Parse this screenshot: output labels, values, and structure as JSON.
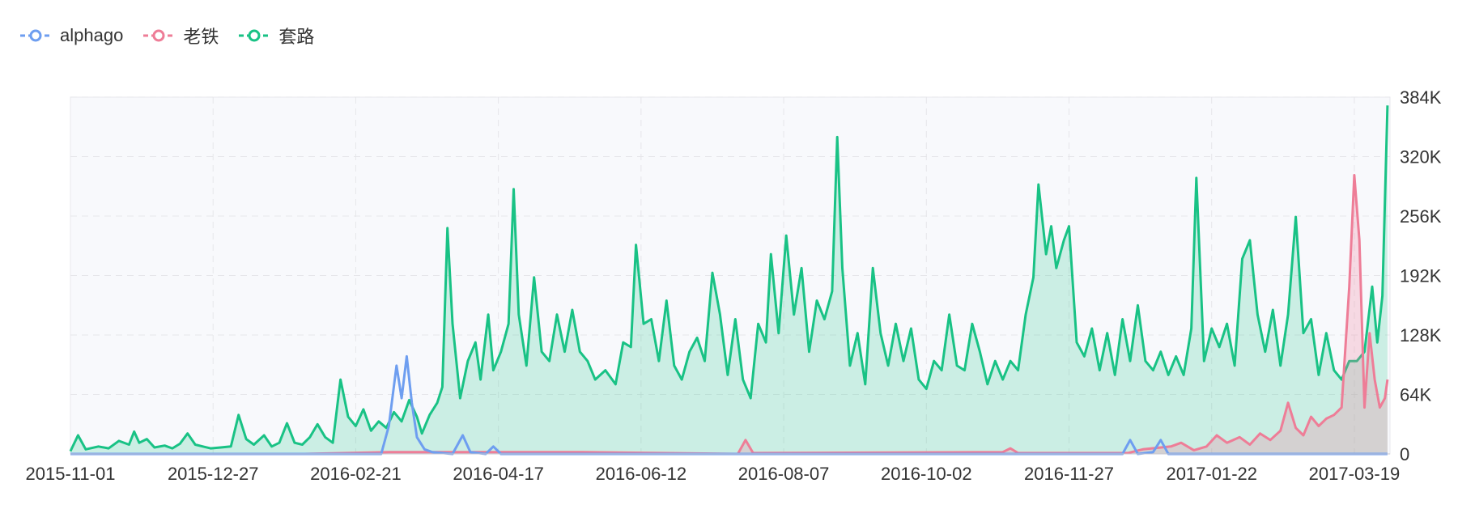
{
  "legend": [
    {
      "name": "alphago",
      "color": "#6e9ef0"
    },
    {
      "name": "老铁",
      "color": "#ee7d97"
    },
    {
      "name": "套路",
      "color": "#19c285"
    }
  ],
  "chart_data": {
    "type": "line",
    "x_tick_labels": [
      "2015-11-01",
      "2015-12-27",
      "2016-02-21",
      "2016-04-17",
      "2016-06-12",
      "2016-08-07",
      "2016-10-02",
      "2016-11-27",
      "2017-01-22",
      "2017-03-19"
    ],
    "y_tick_labels": [
      "0",
      "64K",
      "128K",
      "192K",
      "256K",
      "320K",
      "384K"
    ],
    "ylim": [
      0,
      384000
    ],
    "xlim": [
      "2015-11-01",
      "2017-04-02"
    ],
    "y_axis_position": "right",
    "grid": true,
    "legend_position": "top-left",
    "series": [
      {
        "name": "套路",
        "color": "#19c285",
        "area": true,
        "points": [
          [
            "2015-11-01",
            3000
          ],
          [
            "2015-11-04",
            20000
          ],
          [
            "2015-11-07",
            5000
          ],
          [
            "2015-11-12",
            8000
          ],
          [
            "2015-11-16",
            6000
          ],
          [
            "2015-11-20",
            14000
          ],
          [
            "2015-11-24",
            10000
          ],
          [
            "2015-11-26",
            24000
          ],
          [
            "2015-11-28",
            12000
          ],
          [
            "2015-12-01",
            16000
          ],
          [
            "2015-12-04",
            7000
          ],
          [
            "2015-12-08",
            9000
          ],
          [
            "2015-12-11",
            6000
          ],
          [
            "2015-12-14",
            11000
          ],
          [
            "2015-12-17",
            22000
          ],
          [
            "2015-12-20",
            10000
          ],
          [
            "2015-12-23",
            8000
          ],
          [
            "2015-12-26",
            6000
          ],
          [
            "2015-12-30",
            7000
          ],
          [
            "2016-01-03",
            8000
          ],
          [
            "2016-01-06",
            42000
          ],
          [
            "2016-01-09",
            16000
          ],
          [
            "2016-01-12",
            10000
          ],
          [
            "2016-01-16",
            20000
          ],
          [
            "2016-01-19",
            8000
          ],
          [
            "2016-01-22",
            12000
          ],
          [
            "2016-01-25",
            33000
          ],
          [
            "2016-01-28",
            12000
          ],
          [
            "2016-01-31",
            10000
          ],
          [
            "2016-02-03",
            18000
          ],
          [
            "2016-02-06",
            32000
          ],
          [
            "2016-02-09",
            18000
          ],
          [
            "2016-02-12",
            12000
          ],
          [
            "2016-02-15",
            80000
          ],
          [
            "2016-02-18",
            40000
          ],
          [
            "2016-02-21",
            30000
          ],
          [
            "2016-02-24",
            48000
          ],
          [
            "2016-02-27",
            25000
          ],
          [
            "2016-03-01",
            35000
          ],
          [
            "2016-03-04",
            28000
          ],
          [
            "2016-03-07",
            45000
          ],
          [
            "2016-03-10",
            35000
          ],
          [
            "2016-03-13",
            58000
          ],
          [
            "2016-03-16",
            40000
          ],
          [
            "2016-03-18",
            22000
          ],
          [
            "2016-03-21",
            42000
          ],
          [
            "2016-03-24",
            55000
          ],
          [
            "2016-03-26",
            72000
          ],
          [
            "2016-03-28",
            243000
          ],
          [
            "2016-03-30",
            140000
          ],
          [
            "2016-04-02",
            60000
          ],
          [
            "2016-04-05",
            100000
          ],
          [
            "2016-04-08",
            120000
          ],
          [
            "2016-04-10",
            80000
          ],
          [
            "2016-04-13",
            150000
          ],
          [
            "2016-04-15",
            90000
          ],
          [
            "2016-04-18",
            110000
          ],
          [
            "2016-04-21",
            140000
          ],
          [
            "2016-04-23",
            285000
          ],
          [
            "2016-04-25",
            150000
          ],
          [
            "2016-04-28",
            95000
          ],
          [
            "2016-05-01",
            190000
          ],
          [
            "2016-05-04",
            110000
          ],
          [
            "2016-05-07",
            100000
          ],
          [
            "2016-05-10",
            150000
          ],
          [
            "2016-05-13",
            110000
          ],
          [
            "2016-05-16",
            155000
          ],
          [
            "2016-05-19",
            110000
          ],
          [
            "2016-05-22",
            100000
          ],
          [
            "2016-05-25",
            80000
          ],
          [
            "2016-05-29",
            90000
          ],
          [
            "2016-06-02",
            75000
          ],
          [
            "2016-06-05",
            120000
          ],
          [
            "2016-06-08",
            115000
          ],
          [
            "2016-06-10",
            225000
          ],
          [
            "2016-06-13",
            140000
          ],
          [
            "2016-06-16",
            145000
          ],
          [
            "2016-06-19",
            100000
          ],
          [
            "2016-06-22",
            165000
          ],
          [
            "2016-06-25",
            95000
          ],
          [
            "2016-06-28",
            80000
          ],
          [
            "2016-07-01",
            110000
          ],
          [
            "2016-07-04",
            125000
          ],
          [
            "2016-07-07",
            100000
          ],
          [
            "2016-07-10",
            195000
          ],
          [
            "2016-07-13",
            150000
          ],
          [
            "2016-07-16",
            85000
          ],
          [
            "2016-07-19",
            145000
          ],
          [
            "2016-07-22",
            80000
          ],
          [
            "2016-07-25",
            60000
          ],
          [
            "2016-07-28",
            140000
          ],
          [
            "2016-07-31",
            120000
          ],
          [
            "2016-08-02",
            215000
          ],
          [
            "2016-08-05",
            130000
          ],
          [
            "2016-08-08",
            235000
          ],
          [
            "2016-08-11",
            150000
          ],
          [
            "2016-08-14",
            200000
          ],
          [
            "2016-08-17",
            110000
          ],
          [
            "2016-08-20",
            165000
          ],
          [
            "2016-08-23",
            145000
          ],
          [
            "2016-08-26",
            175000
          ],
          [
            "2016-08-28",
            341000
          ],
          [
            "2016-08-30",
            200000
          ],
          [
            "2016-09-02",
            95000
          ],
          [
            "2016-09-05",
            130000
          ],
          [
            "2016-09-08",
            75000
          ],
          [
            "2016-09-11",
            200000
          ],
          [
            "2016-09-14",
            130000
          ],
          [
            "2016-09-17",
            95000
          ],
          [
            "2016-09-20",
            140000
          ],
          [
            "2016-09-23",
            100000
          ],
          [
            "2016-09-26",
            135000
          ],
          [
            "2016-09-29",
            80000
          ],
          [
            "2016-10-02",
            70000
          ],
          [
            "2016-10-05",
            100000
          ],
          [
            "2016-10-08",
            90000
          ],
          [
            "2016-10-11",
            150000
          ],
          [
            "2016-10-14",
            95000
          ],
          [
            "2016-10-17",
            90000
          ],
          [
            "2016-10-20",
            140000
          ],
          [
            "2016-10-23",
            110000
          ],
          [
            "2016-10-26",
            75000
          ],
          [
            "2016-10-29",
            100000
          ],
          [
            "2016-11-01",
            80000
          ],
          [
            "2016-11-04",
            100000
          ],
          [
            "2016-11-07",
            90000
          ],
          [
            "2016-11-10",
            150000
          ],
          [
            "2016-11-13",
            190000
          ],
          [
            "2016-11-15",
            290000
          ],
          [
            "2016-11-18",
            215000
          ],
          [
            "2016-11-20",
            245000
          ],
          [
            "2016-11-22",
            200000
          ],
          [
            "2016-11-25",
            230000
          ],
          [
            "2016-11-27",
            245000
          ],
          [
            "2016-11-30",
            120000
          ],
          [
            "2016-12-03",
            105000
          ],
          [
            "2016-12-06",
            135000
          ],
          [
            "2016-12-09",
            90000
          ],
          [
            "2016-12-12",
            130000
          ],
          [
            "2016-12-15",
            85000
          ],
          [
            "2016-12-18",
            145000
          ],
          [
            "2016-12-21",
            100000
          ],
          [
            "2016-12-24",
            160000
          ],
          [
            "2016-12-27",
            100000
          ],
          [
            "2016-12-30",
            90000
          ],
          [
            "2017-01-02",
            110000
          ],
          [
            "2017-01-05",
            85000
          ],
          [
            "2017-01-08",
            105000
          ],
          [
            "2017-01-11",
            85000
          ],
          [
            "2017-01-14",
            135000
          ],
          [
            "2017-01-16",
            297000
          ],
          [
            "2017-01-19",
            100000
          ],
          [
            "2017-01-22",
            135000
          ],
          [
            "2017-01-25",
            115000
          ],
          [
            "2017-01-28",
            140000
          ],
          [
            "2017-01-31",
            95000
          ],
          [
            "2017-02-03",
            210000
          ],
          [
            "2017-02-06",
            230000
          ],
          [
            "2017-02-09",
            150000
          ],
          [
            "2017-02-12",
            110000
          ],
          [
            "2017-02-15",
            155000
          ],
          [
            "2017-02-18",
            95000
          ],
          [
            "2017-02-21",
            150000
          ],
          [
            "2017-02-24",
            255000
          ],
          [
            "2017-02-27",
            130000
          ],
          [
            "2017-03-02",
            145000
          ],
          [
            "2017-03-05",
            85000
          ],
          [
            "2017-03-08",
            130000
          ],
          [
            "2017-03-11",
            90000
          ],
          [
            "2017-03-14",
            80000
          ],
          [
            "2017-03-17",
            100000
          ],
          [
            "2017-03-20",
            100000
          ],
          [
            "2017-03-23",
            110000
          ],
          [
            "2017-03-26",
            180000
          ],
          [
            "2017-03-28",
            120000
          ],
          [
            "2017-03-30",
            170000
          ],
          [
            "2017-04-01",
            375000
          ]
        ]
      },
      {
        "name": "老铁",
        "color": "#ee7d97",
        "area": true,
        "points": [
          [
            "2015-11-01",
            0
          ],
          [
            "2016-02-01",
            0
          ],
          [
            "2016-03-05",
            2000
          ],
          [
            "2016-04-10",
            2000
          ],
          [
            "2016-05-20",
            2000
          ],
          [
            "2016-07-20",
            0
          ],
          [
            "2016-07-23",
            15000
          ],
          [
            "2016-07-26",
            1000
          ],
          [
            "2016-11-01",
            2000
          ],
          [
            "2016-11-04",
            6000
          ],
          [
            "2016-11-07",
            1000
          ],
          [
            "2016-12-20",
            1000
          ],
          [
            "2016-12-26",
            5000
          ],
          [
            "2017-01-06",
            8000
          ],
          [
            "2017-01-10",
            12000
          ],
          [
            "2017-01-15",
            4000
          ],
          [
            "2017-01-20",
            8000
          ],
          [
            "2017-01-24",
            20000
          ],
          [
            "2017-01-28",
            12000
          ],
          [
            "2017-02-02",
            18000
          ],
          [
            "2017-02-06",
            10000
          ],
          [
            "2017-02-10",
            22000
          ],
          [
            "2017-02-14",
            15000
          ],
          [
            "2017-02-18",
            25000
          ],
          [
            "2017-02-21",
            55000
          ],
          [
            "2017-02-24",
            28000
          ],
          [
            "2017-02-27",
            20000
          ],
          [
            "2017-03-02",
            40000
          ],
          [
            "2017-03-05",
            30000
          ],
          [
            "2017-03-08",
            38000
          ],
          [
            "2017-03-11",
            42000
          ],
          [
            "2017-03-14",
            50000
          ],
          [
            "2017-03-17",
            180000
          ],
          [
            "2017-03-19",
            300000
          ],
          [
            "2017-03-21",
            230000
          ],
          [
            "2017-03-23",
            50000
          ],
          [
            "2017-03-25",
            130000
          ],
          [
            "2017-03-27",
            80000
          ],
          [
            "2017-03-29",
            50000
          ],
          [
            "2017-03-31",
            60000
          ],
          [
            "2017-04-01",
            80000
          ]
        ]
      },
      {
        "name": "alphago",
        "color": "#6e9ef0",
        "area": false,
        "points": [
          [
            "2015-11-01",
            0
          ],
          [
            "2016-03-02",
            0
          ],
          [
            "2016-03-05",
            30000
          ],
          [
            "2016-03-08",
            95000
          ],
          [
            "2016-03-10",
            60000
          ],
          [
            "2016-03-12",
            105000
          ],
          [
            "2016-03-14",
            55000
          ],
          [
            "2016-03-16",
            18000
          ],
          [
            "2016-03-19",
            5000
          ],
          [
            "2016-03-22",
            2000
          ],
          [
            "2016-03-30",
            0
          ],
          [
            "2016-04-03",
            20000
          ],
          [
            "2016-04-06",
            2000
          ],
          [
            "2016-04-12",
            0
          ],
          [
            "2016-04-15",
            8000
          ],
          [
            "2016-04-18",
            0
          ],
          [
            "2016-12-18",
            0
          ],
          [
            "2016-12-21",
            15000
          ],
          [
            "2016-12-24",
            0
          ],
          [
            "2016-12-30",
            2000
          ],
          [
            "2017-01-02",
            15000
          ],
          [
            "2017-01-05",
            0
          ],
          [
            "2017-04-01",
            0
          ]
        ]
      }
    ]
  }
}
